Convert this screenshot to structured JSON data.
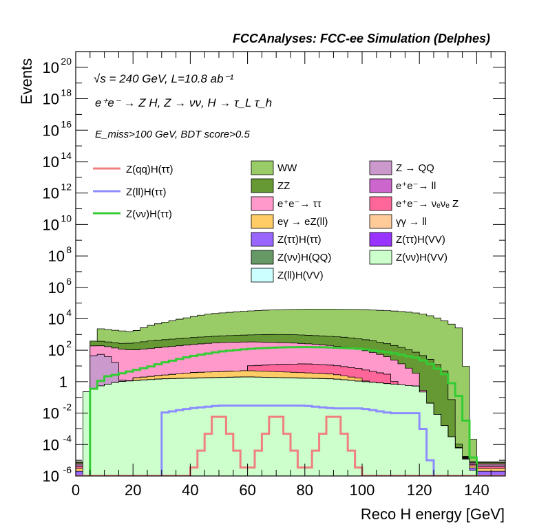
{
  "chart_data": {
    "type": "stacked_histogram",
    "title": "FCCAnalyses: FCC-ee Simulation (Delphes)",
    "xlabel": "Reco H energy [GeV]",
    "ylabel": "Events",
    "xlim": [
      0,
      150
    ],
    "ylim": [
      1e-06,
      1e+21
    ],
    "yscale": "log",
    "x_ticks": [
      "0",
      "20",
      "40",
      "60",
      "80",
      "100",
      "120",
      "140"
    ],
    "y_ticks": [
      {
        "value": 1e-06,
        "base": "10",
        "exp": "-6"
      },
      {
        "value": 0.0001,
        "base": "10",
        "exp": "-4"
      },
      {
        "value": 0.01,
        "base": "10",
        "exp": "-2"
      },
      {
        "value": 1,
        "base": "1",
        "exp": ""
      },
      {
        "value": 100.0,
        "base": "10",
        "exp": "2"
      },
      {
        "value": 10000.0,
        "base": "10",
        "exp": "4"
      },
      {
        "value": 1000000.0,
        "base": "10",
        "exp": "6"
      },
      {
        "value": 100000000.0,
        "base": "10",
        "exp": "8"
      },
      {
        "value": 10000000000.0,
        "base": "10",
        "exp": "10"
      },
      {
        "value": 1000000000000.0,
        "base": "10",
        "exp": "12"
      },
      {
        "value": 100000000000000.0,
        "base": "10",
        "exp": "14"
      },
      {
        "value": 1e+16,
        "base": "10",
        "exp": "16"
      },
      {
        "value": 1e+18,
        "base": "10",
        "exp": "18"
      },
      {
        "value": 1e+20,
        "base": "10",
        "exp": "20"
      }
    ],
    "annotations": {
      "energy_line": "√s = 240 GeV, L=10.8 ab⁻¹",
      "process_line": "e⁺e⁻ → Z H, Z → νν, H → τ_L τ_h",
      "selection_line": "E_miss>100 GeV, BDT score>0.5"
    },
    "legend_position": "top-center",
    "legend_signal": [
      {
        "name": "Z(qq)H(ττ)",
        "color": "#f08080"
      },
      {
        "name": "Z(ll)H(ττ)",
        "color": "#8c8cff"
      },
      {
        "name": "Z(νν)H(ττ)",
        "color": "#33cc33"
      }
    ],
    "legend_background": [
      {
        "name": "WW",
        "color": "#99cc66"
      },
      {
        "name": "Z → QQ",
        "color": "#cc99cc"
      },
      {
        "name": "ZZ",
        "color": "#669933"
      },
      {
        "name": "e⁺e⁻→ ll",
        "color": "#cc66cc"
      },
      {
        "name": "e⁺e⁻→ ττ",
        "color": "#ff99cc"
      },
      {
        "name": "e⁺e⁻→ νₑνₑ Z",
        "color": "#ff6699"
      },
      {
        "name": "eγ → eZ(ll)",
        "color": "#ffcc66"
      },
      {
        "name": "γγ → ll",
        "color": "#ffcc99"
      },
      {
        "name": "Z(ττ)H(ττ)",
        "color": "#9966ff"
      },
      {
        "name": "Z(ττ)H(VV)",
        "color": "#9933ff"
      },
      {
        "name": "Z(νν)H(QQ)",
        "color": "#669966"
      },
      {
        "name": "Z(νν)H(VV)",
        "color": "#ccffcc"
      },
      {
        "name": "Z(ll)H(VV)",
        "color": "#ccffff"
      }
    ],
    "bin_width_gev": 2.5,
    "stack_bins": [
      {
        "name": "WW",
        "color": "#99cc66",
        "x": [
          8,
          15,
          20,
          25,
          30,
          35,
          40,
          45,
          50,
          55,
          60,
          65,
          70,
          75,
          80,
          85,
          90,
          95,
          100,
          105,
          110,
          115,
          120,
          125,
          130,
          135,
          140
        ],
        "y": [
          2000.0,
          1500.0,
          1200.0,
          3000.0,
          5000.0,
          8000.0,
          12000.0,
          18000.0,
          22000.0,
          26000.0,
          30000.0,
          34000.0,
          36000.0,
          38000.0,
          40000.0,
          40000.0,
          40000.0,
          39000.0,
          38000.0,
          35000.0,
          32000.0,
          28000.0,
          22000.0,
          14000.0,
          6000.0,
          2000.0,
          1e-06
        ]
      },
      {
        "name": "ZZ",
        "color": "#669933",
        "x": [
          5,
          15,
          20,
          25,
          30,
          35,
          40,
          45,
          50,
          55,
          60,
          65,
          70,
          75,
          80,
          85,
          90,
          95,
          100,
          105,
          110,
          115,
          120,
          125,
          130,
          135
        ],
        "y": [
          200,
          150,
          180,
          250,
          300,
          350,
          400,
          450,
          500,
          550,
          600,
          650,
          700,
          700,
          650,
          600,
          550,
          500,
          400,
          300,
          200,
          120,
          60,
          20,
          3,
          1e-06
        ]
      },
      {
        "name": "e⁺e⁻→ ττ",
        "color": "#ff99cc",
        "x": [
          5,
          15,
          20,
          25,
          30,
          35,
          40,
          45,
          50,
          55,
          60,
          65,
          70,
          75,
          80,
          85,
          90,
          95,
          100,
          105,
          110,
          115,
          120,
          125
        ],
        "y": [
          150,
          120,
          100,
          120,
          150,
          180,
          220,
          260,
          300,
          320,
          330,
          320,
          300,
          280,
          250,
          220,
          180,
          140,
          100,
          60,
          30,
          10,
          2,
          1e-06
        ]
      },
      {
        "name": "Z → QQ",
        "color": "#cc99cc",
        "x": [
          5,
          10,
          15,
          20
        ],
        "y": [
          40,
          60,
          10,
          1e-06
        ]
      },
      {
        "name": "e⁺e⁻→ νₑνₑ Z",
        "color": "#ff6699",
        "x": [
          60,
          70,
          80,
          90,
          100,
          110,
          120
        ],
        "y": [
          5,
          8,
          10,
          8,
          5,
          2,
          1e-06
        ]
      },
      {
        "name": "eγ → eZ(ll)",
        "color": "#ffcc66",
        "x": [
          20,
          30,
          40,
          50,
          60,
          70,
          80,
          90,
          100,
          110
        ],
        "y": [
          0.5,
          1,
          2,
          2.5,
          3,
          2.5,
          2,
          1.5,
          0.5,
          1e-06
        ]
      },
      {
        "name": "Z(ττ)H(ττ)",
        "color": "#9966ff",
        "x": [
          15,
          25,
          35,
          45,
          55,
          65,
          75,
          85,
          95,
          105,
          115
        ],
        "y": [
          0.02,
          0.03,
          0.05,
          0.05,
          0.06,
          0.05,
          0.04,
          0.03,
          0.02,
          0.01,
          1e-06
        ]
      },
      {
        "name": "Z(νν)H(VV)",
        "color": "#ccffcc",
        "x": [
          3,
          8,
          15,
          30,
          60,
          90,
          120,
          140
        ],
        "y": [
          0.2,
          0.5,
          1,
          1.5,
          2,
          1.5,
          0.5,
          1e-06
        ]
      }
    ],
    "signal_znunu_htautau": {
      "x": [
        5,
        10,
        15,
        20,
        25,
        30,
        40,
        50,
        60,
        70,
        80,
        90,
        100,
        110,
        120,
        125,
        130,
        135,
        140
      ],
      "y": [
        0.2,
        2,
        3,
        5,
        8,
        15,
        40,
        80,
        120,
        150,
        160,
        150,
        120,
        70,
        30,
        10,
        2,
        0.05,
        1e-06
      ]
    },
    "signal_zll_htautau": {
      "x": [
        30,
        40,
        50,
        60,
        70,
        80,
        90,
        100,
        110,
        120,
        125
      ],
      "y": [
        0.01,
        0.02,
        0.03,
        0.03,
        0.03,
        0.03,
        0.02,
        0.02,
        0.01,
        0.01,
        1e-06
      ]
    },
    "signal_zqq_htautau": {
      "x": [
        40,
        50,
        60,
        70,
        80,
        90,
        100
      ],
      "y": [
        1e-06,
        0.02,
        1e-06,
        0.02,
        1e-06,
        0.02,
        1e-06
      ]
    }
  }
}
